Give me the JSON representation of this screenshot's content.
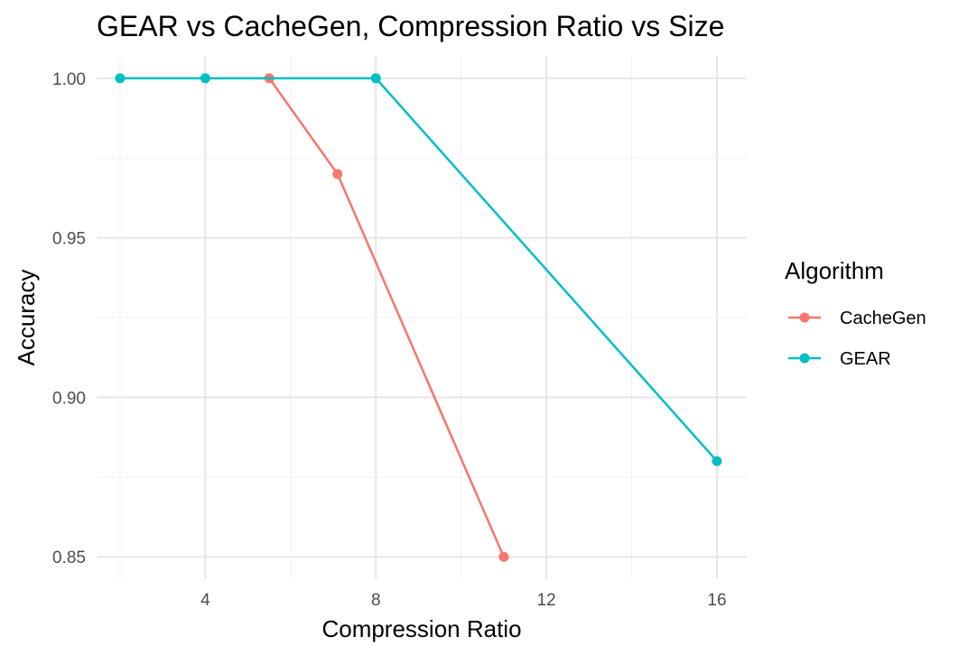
{
  "chart_data": {
    "type": "line",
    "title": "GEAR vs CacheGen, Compression Ratio vs Size",
    "xlabel": "Compression Ratio",
    "ylabel": "Accuracy",
    "xlim": [
      1.45,
      16.7
    ],
    "ylim": [
      0.843,
      1.007
    ],
    "x_ticks": [
      4,
      8,
      12,
      16
    ],
    "x_minor_ticks": [
      2,
      6,
      10,
      14
    ],
    "y_ticks": [
      0.85,
      0.9,
      0.95,
      1.0
    ],
    "y_tick_labels": [
      "0.85",
      "0.90",
      "0.95",
      "1.00"
    ],
    "y_minor_ticks": [
      0.875,
      0.925,
      0.975
    ],
    "grid": true,
    "legend": {
      "title": "Algorithm",
      "position": "right"
    },
    "series": [
      {
        "name": "CacheGen",
        "color": "#F8766D",
        "x": [
          5.5,
          7.1,
          11
        ],
        "y": [
          1.0,
          0.97,
          0.85
        ]
      },
      {
        "name": "GEAR",
        "color": "#00BFC4",
        "x": [
          2,
          4,
          8,
          16
        ],
        "y": [
          1.0,
          1.0,
          1.0,
          0.88
        ]
      }
    ]
  }
}
